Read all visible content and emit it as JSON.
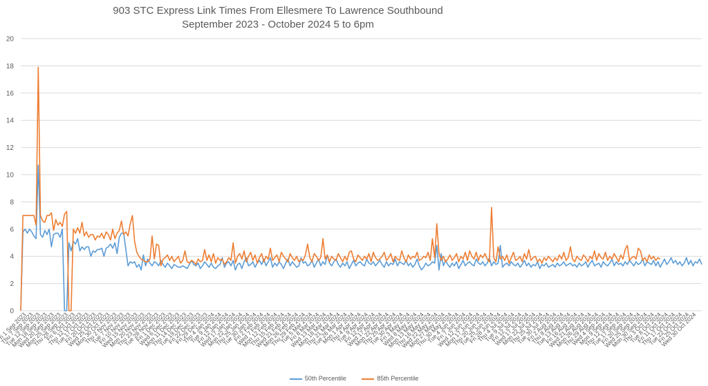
{
  "chart_data": {
    "type": "line",
    "title": "903 STC Express Link Times From Ellesmere To Lawrence Southbound",
    "subtitle": "September 2023 - October 2024 5 to 6pm",
    "ylim": [
      0,
      20
    ],
    "yticks": [
      0,
      2,
      4,
      6,
      8,
      10,
      12,
      14,
      16,
      18,
      20
    ],
    "grid": true,
    "legend_position": "bottom",
    "xtick_labels": [
      "Fri 1 Sep 2023",
      "Thu 7 Sep 2023",
      "Tue 12 Sep 2023",
      "Mon 18 Sep 2023",
      "Wed 20 Sep 2023",
      "Mon 25 Sep 2023",
      "Thu 28 Sep 2023",
      "Fri 6 Oct 2023",
      "Thu 12 Oct 2023",
      "Tue 17 Oct 2023",
      "Fri 20 Oct 2023",
      "Wed 25 Oct 2023",
      "Mon 30 Oct 2023",
      "Thu 2 Nov 2023",
      "Tue 7 Nov 2023",
      "Fri 10 Nov 2023",
      "Wed 15 Nov 2023",
      "Mon 20 Nov 2023",
      "Thu 23 Nov 2023",
      "Tue 28 Nov 2023",
      "Fri 1 Dec 2023",
      "Wed 6 Dec 2023",
      "Mon 11 Dec 2023",
      "Thu 14 Dec 2023",
      "Tue 19 Dec 2023",
      "Fri 22 Dec 2023",
      "Fri 29 Dec 2023",
      "Thu 4 Jan 2024",
      "Tue 9 Jan 2024",
      "Fri 12 Jan 2024",
      "Wed 17 Jan 2024",
      "Mon 22 Jan 2024",
      "Thu 25 Jan 2024",
      "Tue 30 Jan 2024",
      "Fri 2 Feb 2024",
      "Wed 7 Feb 2024",
      "Mon 12 Feb 2024",
      "Thu 15 Feb 2024",
      "Wed 21 Feb 2024",
      "Mon 26 Feb 2024",
      "Thu 29 Feb 2024",
      "Tue 5 Mar 2024",
      "Fri 8 Mar 2024",
      "Wed 13 Mar 2024",
      "Mon 18 Mar 2024",
      "Thu 21 Mar 2024",
      "Tue 26 Mar 2024",
      "Mon 1 Apr 2024",
      "Thu 4 Apr 2024",
      "Tue 9 Apr 2024",
      "Fri 12 Apr 2024",
      "Wed 17 Apr 2024",
      "Mon 22 Apr 2024",
      "Thu 25 Apr 2024",
      "Tue 30 Apr 2024",
      "Fri 3 May 2024",
      "Wed 8 May 2024",
      "Mon 13 May 2024",
      "Thu 16 May 2024",
      "Wed 22 May 2024",
      "Mon 27 May 2024",
      "Thu 30 May 2024",
      "Tue 4 Jun 2024",
      "Fri 7 Jun 2024",
      "Wed 12 Jun 2024",
      "Mon 17 Jun 2024",
      "Thu 20 Jun 2024",
      "Tue 25 Jun 2024",
      "Fri 28 Jun 2024",
      "Thu 4 Jul 2024",
      "Tue 9 Jul 2024",
      "Fri 12 Jul 2024",
      "Wed 17 Jul 2024",
      "Mon 22 Jul 2024",
      "Thu 25 Jul 2024",
      "Tue 30 Jul 2024",
      "Fri 2 Aug 2024",
      "Thu 8 Aug 2024",
      "Tue 13 Aug 2024",
      "Fri 16 Aug 2024",
      "Wed 21 Aug 2024",
      "Mon 26 Aug 2024",
      "Thu 29 Aug 2024",
      "Wed 4 Sep 2024",
      "Mon 9 Sep 2024",
      "Thu 12 Sep 2024",
      "Tue 17 Sep 2024",
      "Fri 20 Sep 2024",
      "Wed 25 Sep 2024",
      "Mon 30 Sep 2024",
      "Thu 3 Oct 2024",
      "Tue 8 Oct 2024",
      "Fri 11 Oct 2024",
      "Thu 17 Oct 2024",
      "Tue 22 Oct 2024",
      "Fri 25 Oct 2024",
      "Wed 30 Oct 2024"
    ],
    "series": [
      {
        "name": "50th Percentile",
        "color": "#5b9bd5",
        "values": [
          0,
          5.8,
          6.0,
          5.7,
          6.0,
          5.8,
          5.5,
          5.3,
          10.7,
          5.6,
          5.4,
          5.9,
          5.6,
          6.0,
          4.7,
          5.6,
          5.7,
          5.7,
          5.4,
          6.0,
          0,
          0,
          5.0,
          4.4,
          5.1,
          4.9,
          5.3,
          4.4,
          4.7,
          4.5,
          4.7,
          4.7,
          4.0,
          4.4,
          4.3,
          4.5,
          4.5,
          4.6,
          4.0,
          4.6,
          4.7,
          4.9,
          4.6,
          5.0,
          4.2,
          5.4,
          5.7,
          5.7,
          4.5,
          3.3,
          3.6,
          3.5,
          3.6,
          3.2,
          3.4,
          3.0,
          4.1,
          3.3,
          3.8,
          3.5,
          3.3,
          3.6,
          3.5,
          3.3,
          3.7,
          3.4,
          3.2,
          3.5,
          3.3,
          3.1,
          3.4,
          3.3,
          3.2,
          3.2,
          3.3,
          3.2,
          3.1,
          3.4,
          3.7,
          3.4,
          3.3,
          3.5,
          3.1,
          3.3,
          3.6,
          3.4,
          3.2,
          3.5,
          3.2,
          3.1,
          3.3,
          3.4,
          3.9,
          3.2,
          3.5,
          3.6,
          3.3,
          3.7,
          3.0,
          3.4,
          3.5,
          3.1,
          3.6,
          3.9,
          3.3,
          3.4,
          3.6,
          3.2,
          3.5,
          3.7,
          3.4,
          3.8,
          3.3,
          3.6,
          3.9,
          3.2,
          3.5,
          3.3,
          3.6,
          3.4,
          3.1,
          3.5,
          3.8,
          3.3,
          3.6,
          3.4,
          3.2,
          3.3,
          3.9,
          3.5,
          3.6,
          3.3,
          3.4,
          3.7,
          3.2,
          3.5,
          3.8,
          3.3,
          3.6,
          3.4,
          4.1,
          3.5,
          3.3,
          3.6,
          3.8,
          3.4,
          3.2,
          3.5,
          3.3,
          3.6,
          3.1,
          3.4,
          3.7,
          3.3,
          3.5,
          3.6,
          3.4,
          3.3,
          3.8,
          3.5,
          3.4,
          3.6,
          3.3,
          3.5,
          3.7,
          3.4,
          3.2,
          3.6,
          3.3,
          3.5,
          3.4,
          3.8,
          3.3,
          3.6,
          3.5,
          3.4,
          3.7,
          3.3,
          3.5,
          3.2,
          3.4,
          3.8,
          3.3,
          3.0,
          3.2,
          3.5,
          3.3,
          3.4,
          3.6,
          3.5,
          4.8,
          3.0,
          4.2,
          3.3,
          3.7,
          3.4,
          3.2,
          3.5,
          3.3,
          3.6,
          3.1,
          3.4,
          3.7,
          3.3,
          3.5,
          3.6,
          3.4,
          3.3,
          3.8,
          3.5,
          3.4,
          3.6,
          3.3,
          3.5,
          3.9,
          3.3,
          3.6,
          3.4,
          3.5,
          4.8,
          3.2,
          3.4,
          3.5,
          3.3,
          3.6,
          3.4,
          3.3,
          3.5,
          3.2,
          3.4,
          3.7,
          3.3,
          3.5,
          3.2,
          3.4,
          3.3,
          3.6,
          3.1,
          3.4,
          3.3,
          3.5,
          3.2,
          3.3,
          3.4,
          3.2,
          3.5,
          3.3,
          3.4,
          3.6,
          3.3,
          3.4,
          3.5,
          3.3,
          3.4,
          3.2,
          3.5,
          3.3,
          3.4,
          3.6,
          3.2,
          3.5,
          3.7,
          3.3,
          3.4,
          3.5,
          3.2,
          3.6,
          3.4,
          3.3,
          3.5,
          3.8,
          3.3,
          3.6,
          3.4,
          3.5,
          3.3,
          3.6,
          3.4,
          3.7,
          3.5,
          3.3,
          3.6,
          3.4,
          3.5,
          3.8,
          3.3,
          3.6,
          3.5,
          3.4,
          3.7,
          3.3,
          3.6,
          3.2,
          3.5,
          3.8,
          3.4,
          3.6,
          3.9,
          3.5,
          3.7,
          3.4,
          3.6,
          3.3,
          3.5,
          3.9,
          3.4,
          3.7,
          3.3,
          3.6,
          3.5,
          3.8,
          3.4
        ]
      },
      {
        "name": "85th Percentile",
        "color": "#ed7d31",
        "values": [
          0,
          7.0,
          7.0,
          7.0,
          7.0,
          7.0,
          7.0,
          6.3,
          17.9,
          7.0,
          6.6,
          6.5,
          7.0,
          7.0,
          7.2,
          5.9,
          6.7,
          6.3,
          6.5,
          6.2,
          7.1,
          7.3,
          0,
          0,
          6.0,
          5.7,
          6.1,
          5.7,
          6.5,
          5.5,
          5.8,
          5.4,
          5.6,
          5.6,
          5.2,
          5.5,
          5.4,
          5.7,
          5.3,
          5.8,
          5.6,
          5.2,
          6.0,
          5.3,
          5.7,
          5.9,
          6.6,
          5.6,
          5.8,
          5.5,
          6.4,
          7.0,
          5.1,
          4.3,
          4.0,
          3.8,
          3.7,
          3.6,
          3.6,
          3.8,
          5.5,
          3.8,
          4.9,
          4.8,
          3.3,
          3.8,
          3.9,
          4.1,
          3.7,
          4.0,
          3.6,
          3.8,
          4.0,
          3.5,
          3.7,
          4.4,
          3.6,
          3.5,
          3.7,
          3.6,
          3.4,
          3.8,
          3.6,
          3.7,
          4.5,
          3.7,
          4.1,
          3.6,
          4.2,
          3.5,
          3.9,
          3.7,
          3.8,
          3.4,
          3.6,
          3.9,
          3.7,
          5.0,
          3.5,
          4.0,
          4.2,
          3.8,
          4.4,
          3.6,
          4.0,
          4.3,
          3.7,
          4.1,
          3.5,
          3.9,
          4.2,
          3.6,
          4.0,
          3.8,
          4.6,
          3.7,
          3.9,
          4.1,
          3.6,
          4.3,
          4.0,
          3.8,
          3.6,
          4.2,
          3.9,
          3.7,
          4.0,
          3.6,
          3.8,
          3.7,
          4.1,
          4.9,
          3.9,
          3.6,
          4.2,
          4.0,
          3.7,
          3.9,
          5.3,
          3.8,
          4.1,
          3.6,
          4.0,
          3.8,
          3.7,
          4.2,
          3.9,
          3.6,
          4.0,
          3.7,
          4.3,
          4.4,
          3.8,
          3.6,
          4.1,
          3.9,
          3.7,
          4.0,
          3.8,
          4.2,
          3.6,
          4.3,
          3.9,
          3.7,
          3.8,
          4.0,
          4.3,
          3.7,
          3.9,
          4.2,
          3.6,
          4.0,
          3.8,
          3.7,
          4.4,
          3.9,
          3.6,
          4.1,
          3.8,
          4.0,
          3.9,
          4.3,
          3.7,
          3.8,
          4.0,
          3.9,
          4.3,
          3.7,
          5.3,
          3.9,
          6.4,
          4.2,
          3.7,
          4.0,
          3.6,
          3.8,
          4.1,
          3.7,
          3.9,
          4.2,
          3.6,
          4.0,
          3.8,
          4.3,
          3.7,
          4.4,
          4.0,
          3.8,
          4.3,
          3.7,
          4.1,
          3.9,
          4.2,
          3.8,
          3.6,
          7.6,
          3.9,
          3.6,
          4.7,
          3.8,
          4.0,
          3.7,
          4.1,
          3.5,
          3.9,
          4.3,
          3.7,
          3.8,
          4.0,
          3.6,
          4.2,
          3.8,
          4.5,
          3.7,
          3.9,
          4.0,
          3.6,
          3.8,
          3.5,
          3.9,
          3.7,
          4.0,
          3.8,
          3.6,
          3.9,
          3.7,
          4.1,
          3.8,
          4.3,
          3.7,
          3.9,
          4.7,
          3.8,
          3.6,
          4.0,
          3.8,
          3.7,
          4.1,
          3.9,
          3.6,
          4.0,
          3.8,
          4.4,
          3.7,
          4.2,
          3.9,
          3.8,
          4.3,
          3.7,
          4.0,
          3.8,
          4.2,
          3.9,
          3.6,
          4.1,
          3.8,
          4.5,
          4.8,
          3.7,
          3.9,
          4.0,
          3.8,
          4.6,
          4.4,
          3.7,
          3.9,
          3.6,
          4.1,
          3.8,
          4.0,
          3.7,
          3.9,
          3.8
        ]
      }
    ]
  }
}
